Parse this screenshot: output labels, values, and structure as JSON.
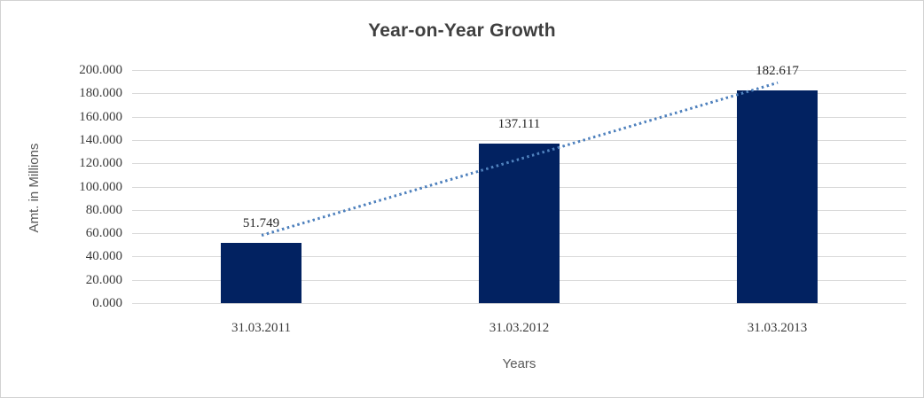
{
  "chart_data": {
    "type": "bar",
    "title": "Year-on-Year Growth",
    "xlabel": "Years",
    "ylabel": "Amt. in Millions",
    "categories": [
      "31.03.2011",
      "31.03.2012",
      "31.03.2013"
    ],
    "values": [
      51.749,
      137.111,
      182.617
    ],
    "data_labels": [
      "51.749",
      "137.111",
      "182.617"
    ],
    "ylim": [
      0,
      200
    ],
    "y_ticks": [
      {
        "value": 0,
        "label": "0.000"
      },
      {
        "value": 20,
        "label": "20.000"
      },
      {
        "value": 40,
        "label": "40.000"
      },
      {
        "value": 60,
        "label": "60.000"
      },
      {
        "value": 80,
        "label": "80.000"
      },
      {
        "value": 100,
        "label": "100.000"
      },
      {
        "value": 120,
        "label": "120.000"
      },
      {
        "value": 140,
        "label": "140.000"
      },
      {
        "value": 160,
        "label": "160.000"
      },
      {
        "value": 180,
        "label": "180.000"
      },
      {
        "value": 200,
        "label": "200.000"
      }
    ],
    "grid": true,
    "legend": "none",
    "trendline": {
      "type": "linear",
      "style": "dotted",
      "start_value": 58.4,
      "end_value": 189.3
    },
    "colors": {
      "bar": "#022261",
      "trendline": "#4f81bd",
      "gridline": "#d9d9d9",
      "title_text": "#3f3f3f",
      "axis_text": "#595959"
    }
  }
}
